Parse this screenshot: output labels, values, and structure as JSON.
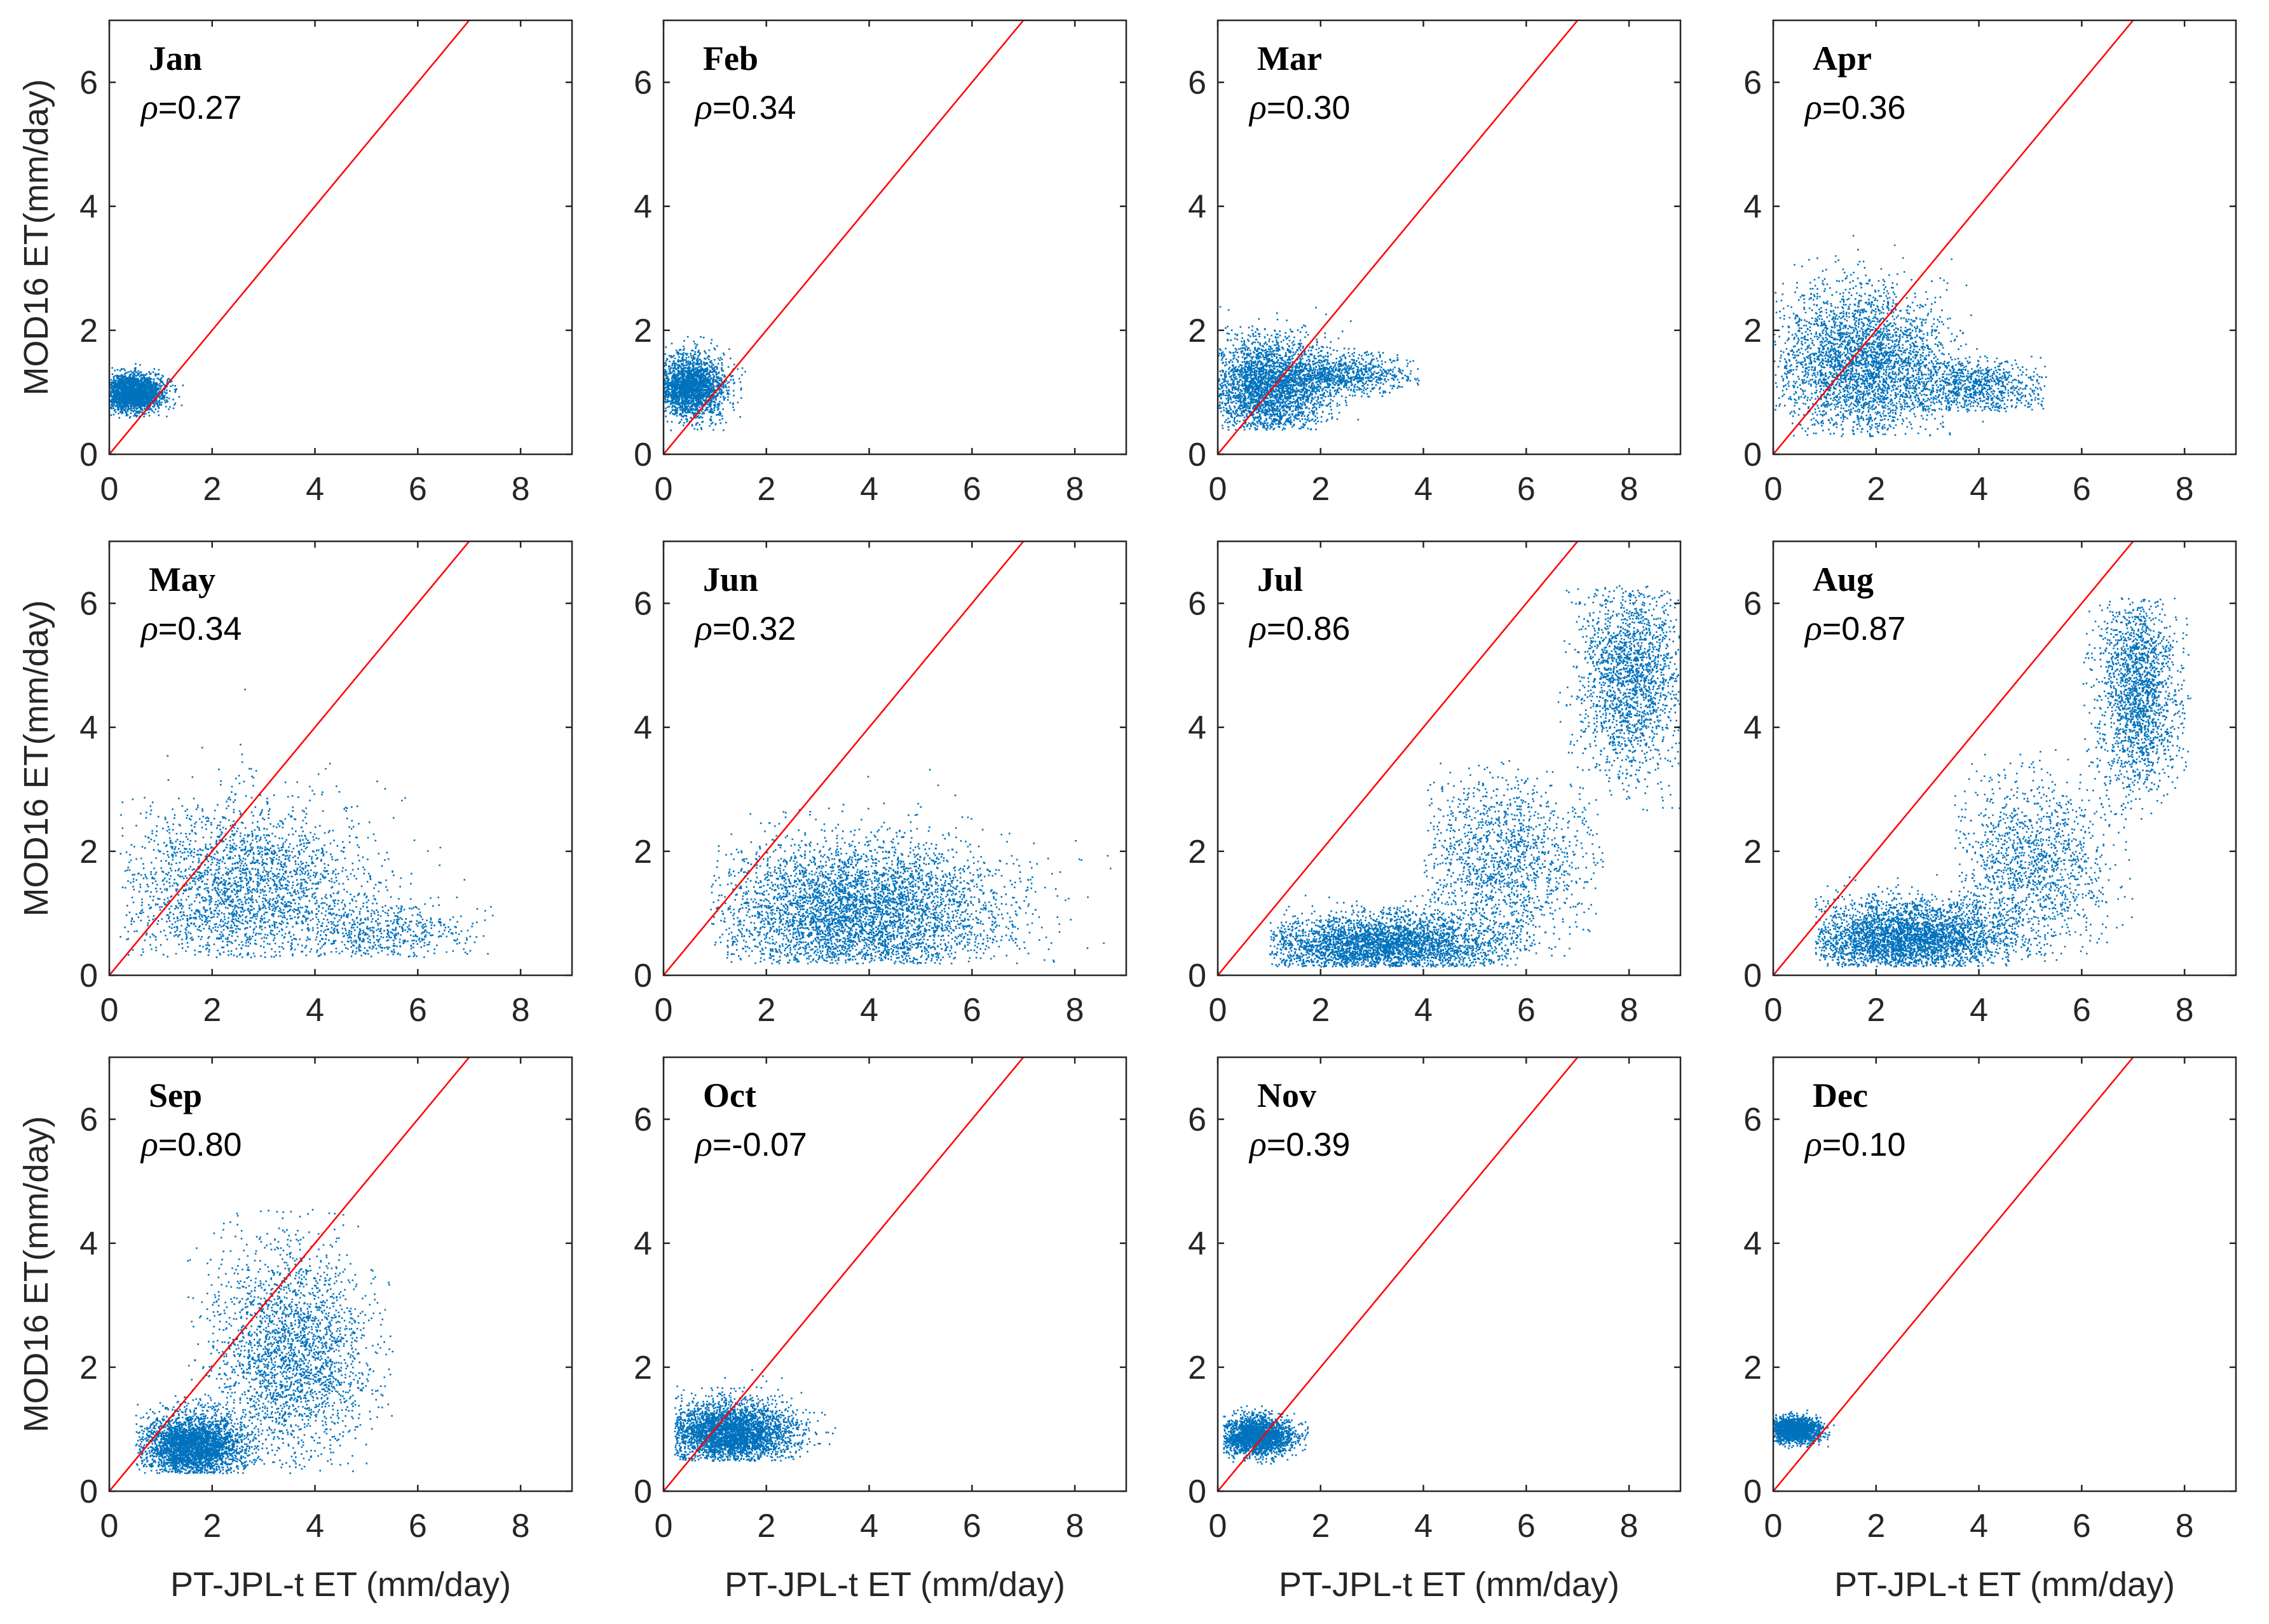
{
  "figure": {
    "xlabel": "PT-JPL-t ET (mm/day)",
    "ylabel": "MOD16 ET(mm/day)",
    "point_color": "#0072bd",
    "line_color": "#ff0000",
    "rho_symbol": "ρ"
  },
  "chart_data": [
    {
      "type": "scatter",
      "title": "Jan",
      "rho": "=0.27",
      "xlim": [
        0,
        9
      ],
      "ylim": [
        0,
        7
      ],
      "xticks": [
        0,
        2,
        4,
        6,
        8
      ],
      "yticks": [
        0,
        2,
        4,
        6
      ],
      "reference_line": "1:1",
      "point_clusters": [
        {
          "x_mean": 0.45,
          "x_sd": 0.3,
          "y_mean": 1.0,
          "y_sd": 0.15,
          "x_range": [
            0,
            1.5
          ],
          "y_range": [
            0.6,
            1.8
          ],
          "count": 2200
        }
      ]
    },
    {
      "type": "scatter",
      "title": "Feb",
      "rho": "=0.34",
      "xlim": [
        0,
        9
      ],
      "ylim": [
        0,
        7
      ],
      "xticks": [
        0,
        2,
        4,
        6,
        8
      ],
      "yticks": [
        0,
        2,
        4,
        6
      ],
      "reference_line": "1:1",
      "point_clusters": [
        {
          "x_mean": 0.5,
          "x_sd": 0.35,
          "y_mean": 1.1,
          "y_sd": 0.25,
          "x_range": [
            0,
            1.9
          ],
          "y_range": [
            0.4,
            2.6
          ],
          "count": 2200
        }
      ]
    },
    {
      "type": "scatter",
      "title": "Mar",
      "rho": "=0.30",
      "xlim": [
        0,
        9
      ],
      "ylim": [
        0,
        7
      ],
      "xticks": [
        0,
        2,
        4,
        6,
        8
      ],
      "yticks": [
        0,
        2,
        4,
        6
      ],
      "reference_line": "1:1",
      "point_clusters": [
        {
          "x_mean": 1.0,
          "x_sd": 0.6,
          "y_mean": 1.1,
          "y_sd": 0.4,
          "x_range": [
            0,
            3.8
          ],
          "y_range": [
            0.4,
            3.8
          ],
          "count": 2800
        },
        {
          "x_mean": 2.5,
          "x_sd": 0.6,
          "y_mean": 1.3,
          "y_sd": 0.15,
          "x_range": [
            1.5,
            3.9
          ],
          "y_range": [
            0.7,
            1.7
          ],
          "count": 700
        }
      ]
    },
    {
      "type": "scatter",
      "title": "Apr",
      "rho": "=0.36",
      "xlim": [
        0,
        9
      ],
      "ylim": [
        0,
        7
      ],
      "xticks": [
        0,
        2,
        4,
        6,
        8
      ],
      "yticks": [
        0,
        2,
        4,
        6
      ],
      "reference_line": "1:1",
      "point_clusters": [
        {
          "x_mean": 1.7,
          "x_sd": 0.8,
          "y_mean": 1.5,
          "y_sd": 0.6,
          "x_range": [
            0,
            5.3
          ],
          "y_range": [
            0.3,
            4.5
          ],
          "count": 3000
        },
        {
          "x_mean": 3.8,
          "x_sd": 0.8,
          "y_mean": 1.1,
          "y_sd": 0.25,
          "x_range": [
            2.5,
            5.3
          ],
          "y_range": [
            0.7,
            1.6
          ],
          "count": 900
        }
      ]
    },
    {
      "type": "scatter",
      "title": "May",
      "rho": "=0.34",
      "xlim": [
        0,
        9
      ],
      "ylim": [
        0,
        7
      ],
      "xticks": [
        0,
        2,
        4,
        6,
        8
      ],
      "yticks": [
        0,
        2,
        4,
        6
      ],
      "reference_line": "1:1",
      "point_clusters": [
        {
          "x_mean": 2.6,
          "x_sd": 1.2,
          "y_mean": 1.4,
          "y_sd": 0.7,
          "x_range": [
            0.2,
            7.5
          ],
          "y_range": [
            0.3,
            4.8
          ],
          "count": 2400
        },
        {
          "x_mean": 5.3,
          "x_sd": 0.9,
          "y_mean": 0.7,
          "y_sd": 0.25,
          "x_range": [
            4,
            7.5
          ],
          "y_range": [
            0.3,
            1.3
          ],
          "count": 500
        }
      ]
    },
    {
      "type": "scatter",
      "title": "Jun",
      "rho": "=0.32",
      "xlim": [
        0,
        9
      ],
      "ylim": [
        0,
        7
      ],
      "xticks": [
        0,
        2,
        4,
        6,
        8
      ],
      "yticks": [
        0,
        2,
        4,
        6
      ],
      "reference_line": "1:1",
      "point_clusters": [
        {
          "x_mean": 3.8,
          "x_sd": 1.4,
          "y_mean": 1.0,
          "y_sd": 0.6,
          "x_range": [
            0.9,
            8.8
          ],
          "y_range": [
            0.2,
            4.5
          ],
          "count": 4200
        }
      ]
    },
    {
      "type": "scatter",
      "title": "Jul",
      "rho": "=0.86",
      "xlim": [
        0,
        9
      ],
      "ylim": [
        0,
        7
      ],
      "xticks": [
        0,
        2,
        4,
        6,
        8
      ],
      "yticks": [
        0,
        2,
        4,
        6
      ],
      "reference_line": "1:1",
      "point_clusters": [
        {
          "x_mean": 3.2,
          "x_sd": 1.2,
          "y_mean": 0.5,
          "y_sd": 0.25,
          "x_range": [
            1.0,
            6.0
          ],
          "y_range": [
            0.15,
            1.6
          ],
          "count": 3200
        },
        {
          "x_mean": 5.5,
          "x_sd": 0.9,
          "y_mean": 1.8,
          "y_sd": 0.7,
          "x_range": [
            4,
            7.5
          ],
          "y_range": [
            0.3,
            3.5
          ],
          "count": 1400
        },
        {
          "x_mean": 8.0,
          "x_sd": 0.5,
          "y_mean": 4.8,
          "y_sd": 0.8,
          "x_range": [
            6.5,
            9
          ],
          "y_range": [
            2.5,
            6.3
          ],
          "count": 1800
        }
      ]
    },
    {
      "type": "scatter",
      "title": "Aug",
      "rho": "=0.87",
      "xlim": [
        0,
        9
      ],
      "ylim": [
        0,
        7
      ],
      "xticks": [
        0,
        2,
        4,
        6,
        8
      ],
      "yticks": [
        0,
        2,
        4,
        6
      ],
      "reference_line": "1:1",
      "point_clusters": [
        {
          "x_mean": 2.6,
          "x_sd": 1.0,
          "y_mean": 0.6,
          "y_sd": 0.3,
          "x_range": [
            0.8,
            5.5
          ],
          "y_range": [
            0.15,
            1.8
          ],
          "count": 3200
        },
        {
          "x_mean": 5.0,
          "x_sd": 0.8,
          "y_mean": 1.8,
          "y_sd": 0.7,
          "x_range": [
            3.5,
            7
          ],
          "y_range": [
            0.3,
            3.8
          ],
          "count": 1300
        },
        {
          "x_mean": 7.1,
          "x_sd": 0.4,
          "y_mean": 4.6,
          "y_sd": 0.8,
          "x_range": [
            6,
            8.1
          ],
          "y_range": [
            2.5,
            6.1
          ],
          "count": 1800
        }
      ]
    },
    {
      "type": "scatter",
      "title": "Sep",
      "rho": "=0.80",
      "xlim": [
        0,
        9
      ],
      "ylim": [
        0,
        7
      ],
      "xticks": [
        0,
        2,
        4,
        6,
        8
      ],
      "yticks": [
        0,
        2,
        4,
        6
      ],
      "reference_line": "1:1",
      "point_clusters": [
        {
          "x_mean": 1.6,
          "x_sd": 0.5,
          "y_mean": 0.75,
          "y_sd": 0.25,
          "x_range": [
            0.5,
            3.5
          ],
          "y_range": [
            0.3,
            1.8
          ],
          "count": 3000
        },
        {
          "x_mean": 3.5,
          "x_sd": 0.8,
          "y_mean": 2.2,
          "y_sd": 0.9,
          "x_range": [
            1.5,
            5.5
          ],
          "y_range": [
            0.3,
            4.6
          ],
          "count": 2400
        }
      ]
    },
    {
      "type": "scatter",
      "title": "Oct",
      "rho": "=-0.07",
      "xlim": [
        0,
        9
      ],
      "ylim": [
        0,
        7
      ],
      "xticks": [
        0,
        2,
        4,
        6,
        8
      ],
      "yticks": [
        0,
        2,
        4,
        6
      ],
      "reference_line": "1:1",
      "point_clusters": [
        {
          "x_mean": 1.3,
          "x_sd": 0.6,
          "y_mean": 0.95,
          "y_sd": 0.25,
          "x_range": [
            0.2,
            3.4
          ],
          "y_range": [
            0.5,
            2.3
          ],
          "count": 3400
        }
      ]
    },
    {
      "type": "scatter",
      "title": "Nov",
      "rho": "=0.39",
      "xlim": [
        0,
        9
      ],
      "ylim": [
        0,
        7
      ],
      "xticks": [
        0,
        2,
        4,
        6,
        8
      ],
      "yticks": [
        0,
        2,
        4,
        6
      ],
      "reference_line": "1:1",
      "point_clusters": [
        {
          "x_mean": 0.75,
          "x_sd": 0.35,
          "y_mean": 0.9,
          "y_sd": 0.15,
          "x_range": [
            0.1,
            1.9
          ],
          "y_range": [
            0.45,
            1.6
          ],
          "count": 2200
        }
      ]
    },
    {
      "type": "scatter",
      "title": "Dec",
      "rho": "=0.10",
      "xlim": [
        0,
        9
      ],
      "ylim": [
        0,
        7
      ],
      "xticks": [
        0,
        2,
        4,
        6,
        8
      ],
      "yticks": [
        0,
        2,
        4,
        6
      ],
      "reference_line": "1:1",
      "point_clusters": [
        {
          "x_mean": 0.4,
          "x_sd": 0.25,
          "y_mean": 1.0,
          "y_sd": 0.1,
          "x_range": [
            0,
            1.5
          ],
          "y_range": [
            0.7,
            1.4
          ],
          "count": 1800
        }
      ]
    }
  ]
}
